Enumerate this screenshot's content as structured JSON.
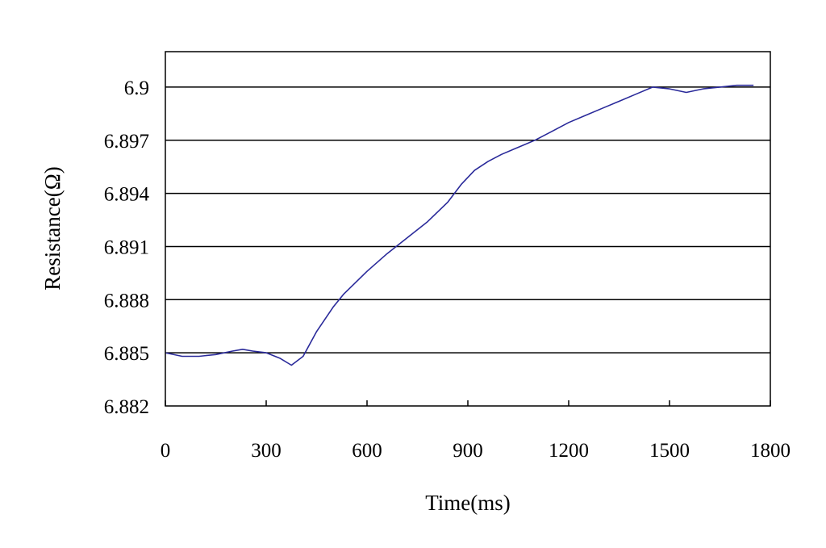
{
  "chart_data": {
    "type": "line",
    "title": "",
    "xlabel": "Time(ms)",
    "ylabel": "Resistance(Ω)",
    "xlim": [
      0,
      1800
    ],
    "ylim": [
      6.882,
      6.902
    ],
    "x_ticks": [
      "0",
      "300",
      "600",
      "900",
      "1200",
      "1500",
      "1800"
    ],
    "y_ticks": [
      "6.882",
      "6.885",
      "6.888",
      "6.891",
      "6.894",
      "6.897",
      "6.9"
    ],
    "grid": "horizontal",
    "legend": "none",
    "series": [
      {
        "color": "#2a2a9a",
        "x": [
          0,
          50,
          100,
          150,
          200,
          230,
          260,
          300,
          340,
          375,
          410,
          450,
          500,
          530,
          600,
          660,
          720,
          780,
          840,
          880,
          920,
          960,
          1000,
          1050,
          1100,
          1150,
          1200,
          1250,
          1300,
          1350,
          1400,
          1450,
          1500,
          1550,
          1600,
          1650,
          1700,
          1750
        ],
        "y": [
          6.885,
          6.8848,
          6.8848,
          6.8849,
          6.8851,
          6.8852,
          6.8851,
          6.885,
          6.8847,
          6.8843,
          6.8848,
          6.8862,
          6.8876,
          6.8883,
          6.8896,
          6.8906,
          6.8915,
          6.8924,
          6.8935,
          6.8945,
          6.8953,
          6.8958,
          6.8962,
          6.8966,
          6.897,
          6.8975,
          6.898,
          6.8984,
          6.8988,
          6.8992,
          6.8996,
          6.9,
          6.8999,
          6.8997,
          6.8999,
          6.9,
          6.9001,
          6.9001
        ]
      }
    ]
  }
}
